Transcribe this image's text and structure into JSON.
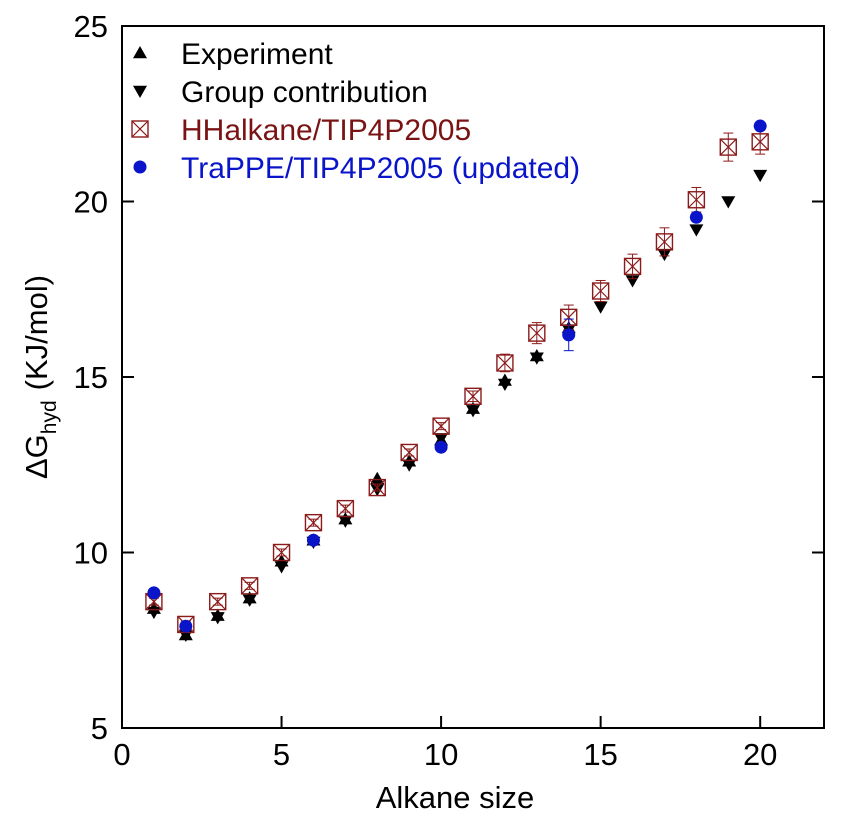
{
  "chart_data": {
    "type": "scatter",
    "xlabel": "Alkane size",
    "ylabel_main": "ΔG",
    "ylabel_sub": "hyd",
    "ylabel_unit": "(KJ/mol)",
    "xlim": [
      0,
      22
    ],
    "ylim": [
      5,
      25
    ],
    "xticks": [
      "0",
      "5",
      "10",
      "15",
      "20"
    ],
    "yticks": [
      "5",
      "10",
      "15",
      "20",
      "25"
    ],
    "grid": false,
    "legend_position": "top-left",
    "series": [
      {
        "name": "Experiment",
        "marker": "triangle-up",
        "color": "#000000",
        "x": [
          1,
          2,
          3,
          4,
          5,
          6,
          7,
          8,
          9,
          10,
          11,
          12,
          13,
          14
        ],
        "y": [
          8.4,
          7.65,
          8.2,
          8.7,
          9.75,
          10.35,
          10.95,
          12.1,
          12.6,
          13.2,
          14.1,
          14.9,
          15.6,
          16.4
        ]
      },
      {
        "name": "Group contribution",
        "marker": "triangle-down",
        "color": "#000000",
        "x": [
          1,
          2,
          3,
          4,
          5,
          6,
          7,
          8,
          9,
          10,
          11,
          12,
          13,
          14,
          15,
          16,
          17,
          18,
          19,
          20
        ],
        "y": [
          8.3,
          7.65,
          8.15,
          8.65,
          9.6,
          10.3,
          10.9,
          11.8,
          12.5,
          13.25,
          14.05,
          14.8,
          15.55,
          16.35,
          17.0,
          17.75,
          18.5,
          19.2,
          20.0,
          20.75
        ]
      },
      {
        "name": "HHalkane/TIP4P2005",
        "marker": "square-x",
        "color": "#8b1a1a",
        "x": [
          1,
          2,
          3,
          4,
          5,
          6,
          7,
          8,
          9,
          10,
          11,
          12,
          13,
          14,
          15,
          16,
          17,
          18,
          19,
          20
        ],
        "y": [
          8.6,
          7.95,
          8.6,
          9.05,
          10.0,
          10.85,
          11.25,
          11.85,
          12.85,
          13.6,
          14.45,
          15.4,
          16.25,
          16.7,
          17.45,
          18.15,
          18.85,
          20.05,
          21.55,
          21.7
        ],
        "err": [
          0.1,
          0.1,
          0.1,
          0.1,
          0.1,
          0.1,
          0.1,
          0.1,
          0.1,
          0.1,
          0.15,
          0.25,
          0.3,
          0.35,
          0.3,
          0.35,
          0.4,
          0.35,
          0.4,
          0.35
        ]
      },
      {
        "name": "TraPPE/TIP4P2005 (updated)",
        "marker": "circle",
        "color": "#0a14c8",
        "x": [
          1,
          2,
          6,
          10,
          14,
          18,
          20
        ],
        "y": [
          8.85,
          7.9,
          10.35,
          13.0,
          16.2,
          19.55,
          22.15
        ],
        "err": [
          0,
          0,
          0,
          0,
          0.45,
          0,
          0
        ]
      }
    ]
  }
}
